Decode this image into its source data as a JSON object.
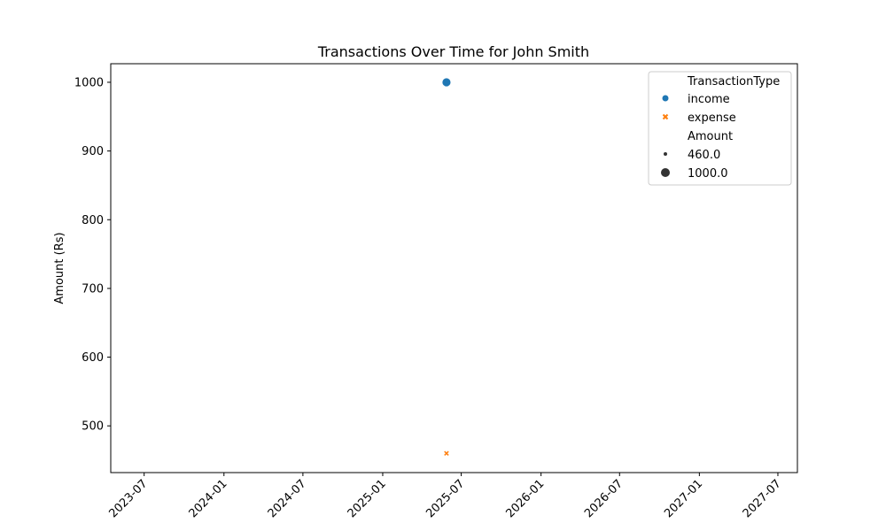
{
  "chart_data": {
    "type": "scatter",
    "title": "Transactions Over Time for John Smith",
    "xlabel": "",
    "ylabel": "Amount (Rs)",
    "x_ticks": [
      "2023-07",
      "2024-01",
      "2024-07",
      "2025-01",
      "2025-07",
      "2026-01",
      "2026-07",
      "2027-01",
      "2027-07"
    ],
    "xlim": [
      "2023-04-15",
      "2027-08-15"
    ],
    "ylim": [
      432,
      1027
    ],
    "y_ticks": [
      500,
      600,
      700,
      800,
      900,
      1000
    ],
    "series": [
      {
        "name": "income",
        "marker": "circle",
        "color": "#1f77b4",
        "points": [
          {
            "x": "2025-05-28",
            "y": 1000
          }
        ]
      },
      {
        "name": "expense",
        "marker": "x",
        "color": "#ff7f0e",
        "points": [
          {
            "x": "2025-05-28",
            "y": 460
          }
        ]
      }
    ],
    "legend": {
      "placement": "top-right",
      "hue_title": "TransactionType",
      "hue_items": [
        "income",
        "expense"
      ],
      "size_title": "Amount",
      "size_items": [
        "460.0",
        "1000.0"
      ]
    },
    "grid": false
  }
}
